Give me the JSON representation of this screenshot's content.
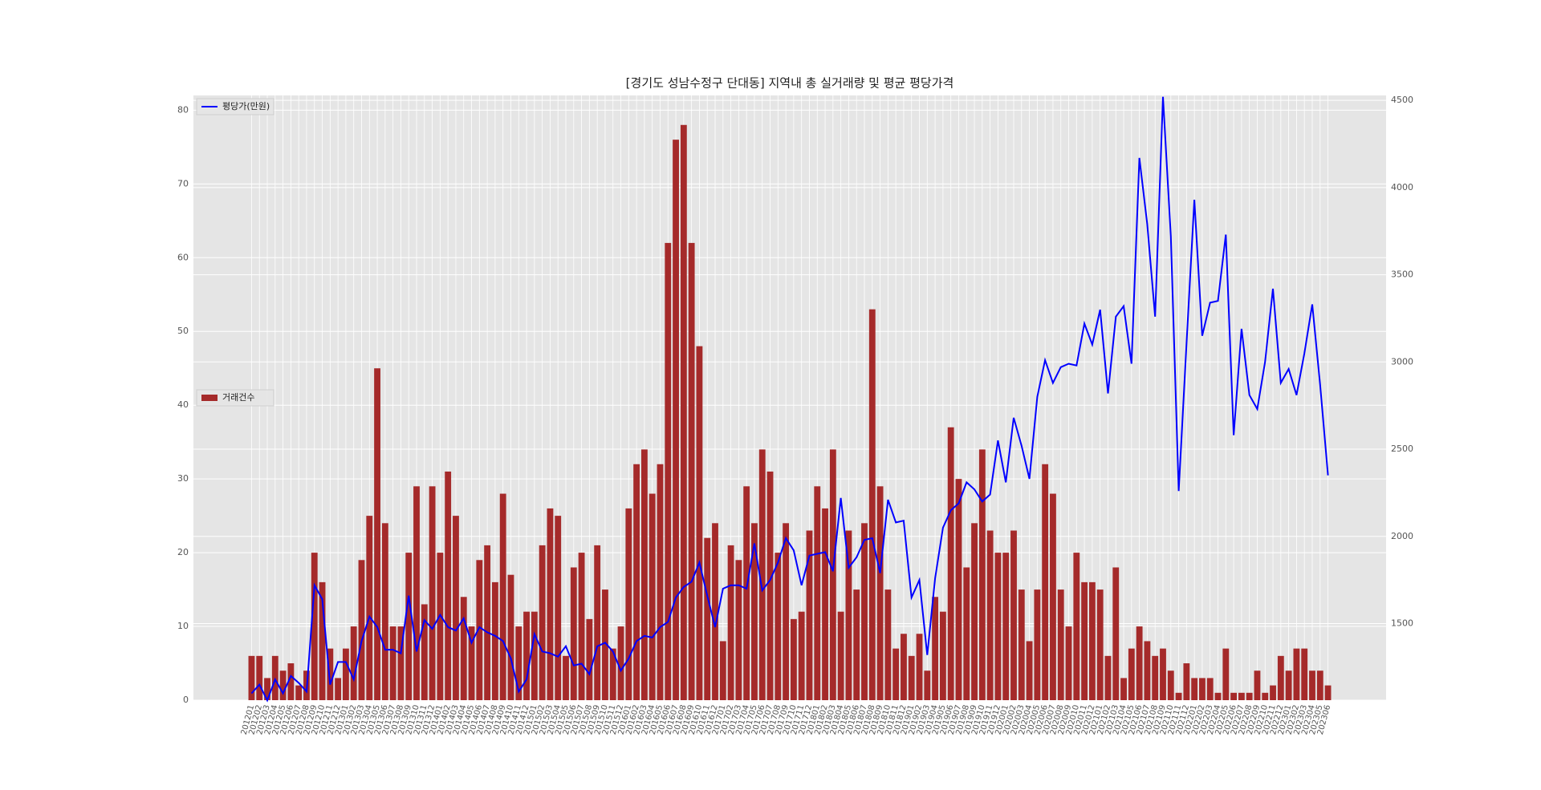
{
  "chart_data": {
    "type": "bar_line",
    "title": "[경기도 성남수정구 단대동] 지역내 총 실거래량 및 평균 평당가격",
    "categories": [
      "201201",
      "201202",
      "201203",
      "201204",
      "201205",
      "201206",
      "201207",
      "201208",
      "201209",
      "201210",
      "201211",
      "201212",
      "201301",
      "201302",
      "201303",
      "201304",
      "201305",
      "201306",
      "201307",
      "201308",
      "201309",
      "201310",
      "201311",
      "201312",
      "201401",
      "201402",
      "201403",
      "201404",
      "201405",
      "201406",
      "201407",
      "201408",
      "201409",
      "201410",
      "201411",
      "201412",
      "201501",
      "201502",
      "201503",
      "201504",
      "201505",
      "201506",
      "201507",
      "201508",
      "201509",
      "201510",
      "201511",
      "201512",
      "201601",
      "201602",
      "201603",
      "201604",
      "201605",
      "201606",
      "201607",
      "201608",
      "201609",
      "201610",
      "201611",
      "201612",
      "201701",
      "201702",
      "201703",
      "201704",
      "201705",
      "201706",
      "201707",
      "201708",
      "201709",
      "201710",
      "201711",
      "201712",
      "201801",
      "201802",
      "201803",
      "201804",
      "201805",
      "201806",
      "201807",
      "201808",
      "201809",
      "201810",
      "201811",
      "201812",
      "201901",
      "201902",
      "201903",
      "201904",
      "201905",
      "201906",
      "201907",
      "201908",
      "201909",
      "201910",
      "201911",
      "201912",
      "202001",
      "202002",
      "202003",
      "202004",
      "202005",
      "202006",
      "202007",
      "202008",
      "202009",
      "202010",
      "202011",
      "202012",
      "202101",
      "202102",
      "202103",
      "202104",
      "202105",
      "202106",
      "202107",
      "202108",
      "202109",
      "202110",
      "202111",
      "202112",
      "202201",
      "202202",
      "202203",
      "202204",
      "202205",
      "202206",
      "202207",
      "202208",
      "202209",
      "202210",
      "202211",
      "202212",
      "202301",
      "202302",
      "202303",
      "202304",
      "202305",
      "202306"
    ],
    "series": [
      {
        "name": "거래건수",
        "kind": "bar",
        "axis": "y",
        "color": "#a52a2a",
        "legend": "center left",
        "values": [
          6,
          6,
          3,
          6,
          4,
          5,
          2,
          4,
          20,
          16,
          7,
          3,
          7,
          10,
          19,
          25,
          45,
          24,
          10,
          10,
          20,
          29,
          13,
          29,
          20,
          31,
          25,
          14,
          10,
          19,
          21,
          16,
          28,
          17,
          10,
          12,
          12,
          21,
          26,
          25,
          6,
          18,
          20,
          11,
          21,
          15,
          7,
          10,
          26,
          32,
          34,
          28,
          32,
          62,
          76,
          78,
          62,
          48,
          22,
          24,
          8,
          21,
          19,
          29,
          24,
          34,
          31,
          20,
          24,
          11,
          12,
          23,
          29,
          26,
          34,
          12,
          23,
          15,
          24,
          53,
          29,
          15,
          7,
          9,
          6,
          9,
          4,
          14,
          12,
          37,
          30,
          18,
          24,
          34,
          23,
          20,
          20,
          23,
          15,
          8,
          15,
          32,
          28,
          15,
          10,
          20,
          16,
          16,
          15,
          6,
          18,
          3,
          7,
          10,
          8,
          6,
          7,
          4,
          1,
          5,
          3,
          3,
          3,
          1,
          7,
          1,
          1,
          1,
          4,
          1,
          2,
          6,
          4,
          7,
          7,
          4,
          4,
          2
        ]
      },
      {
        "name": "평당가(만원)",
        "kind": "line",
        "axis": "y2",
        "color": "#0000ff",
        "legend": "upper left",
        "values": [
          1100,
          1150,
          1060,
          1180,
          1100,
          1200,
          1160,
          1110,
          1720,
          1640,
          1150,
          1280,
          1280,
          1180,
          1400,
          1540,
          1480,
          1350,
          1350,
          1330,
          1660,
          1340,
          1520,
          1470,
          1550,
          1480,
          1460,
          1530,
          1390,
          1480,
          1450,
          1430,
          1400,
          1300,
          1110,
          1180,
          1440,
          1340,
          1330,
          1310,
          1370,
          1260,
          1270,
          1210,
          1370,
          1390,
          1340,
          1230,
          1300,
          1400,
          1430,
          1420,
          1480,
          1510,
          1650,
          1710,
          1740,
          1850,
          1660,
          1480,
          1700,
          1720,
          1720,
          1700,
          1960,
          1690,
          1750,
          1850,
          1990,
          1920,
          1720,
          1890,
          1900,
          1910,
          1800,
          2220,
          1820,
          1880,
          1980,
          1990,
          1790,
          2210,
          2080,
          2090,
          1650,
          1750,
          1320,
          1760,
          2050,
          2150,
          2190,
          2310,
          2270,
          2200,
          2240,
          2550,
          2310,
          2680,
          2520,
          2330,
          2800,
          3010,
          2880,
          2970,
          2990,
          2980,
          3220,
          3100,
          3300,
          2820,
          3260,
          3320,
          2990,
          4170,
          3790,
          3260,
          4520,
          3720,
          2260,
          3110,
          3930,
          3150,
          3340,
          3350,
          3730,
          2580,
          3190,
          2810,
          2730,
          3000,
          3420,
          2880,
          2960,
          2810,
          3050,
          3330,
          2870,
          2350
        ]
      }
    ],
    "ylim": [
      0,
      82
    ],
    "yticks": [
      0,
      10,
      20,
      30,
      40,
      50,
      60,
      70,
      80
    ],
    "y2lim": [
      1061,
      4528
    ],
    "y2ticks": [
      1500,
      2000,
      2500,
      3000,
      3500,
      4000,
      4500
    ],
    "grid": true
  }
}
